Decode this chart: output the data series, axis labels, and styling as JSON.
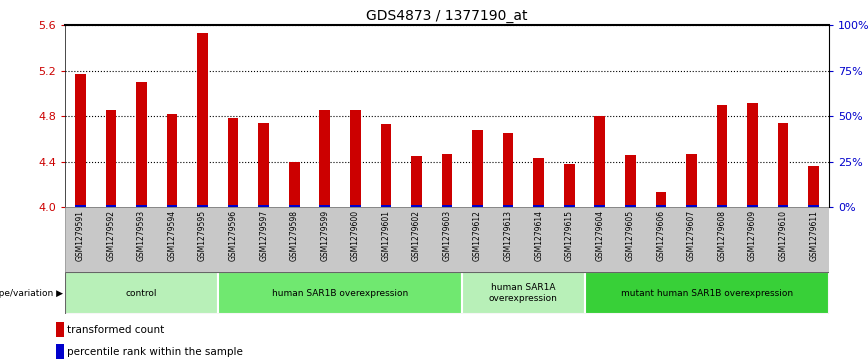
{
  "title": "GDS4873 / 1377190_at",
  "samples": [
    "GSM1279591",
    "GSM1279592",
    "GSM1279593",
    "GSM1279594",
    "GSM1279595",
    "GSM1279596",
    "GSM1279597",
    "GSM1279598",
    "GSM1279599",
    "GSM1279600",
    "GSM1279601",
    "GSM1279602",
    "GSM1279603",
    "GSM1279612",
    "GSM1279613",
    "GSM1279614",
    "GSM1279615",
    "GSM1279604",
    "GSM1279605",
    "GSM1279606",
    "GSM1279607",
    "GSM1279608",
    "GSM1279609",
    "GSM1279610",
    "GSM1279611"
  ],
  "values": [
    5.17,
    4.85,
    5.1,
    4.82,
    5.53,
    4.78,
    4.74,
    4.4,
    4.85,
    4.85,
    4.73,
    4.45,
    4.47,
    4.68,
    4.65,
    4.43,
    4.38,
    4.8,
    4.46,
    4.13,
    4.47,
    4.9,
    4.92,
    4.74,
    4.36
  ],
  "bar_color": "#cc0000",
  "percentile_color": "#0000cc",
  "ylim_min": 4.0,
  "ylim_max": 5.6,
  "yticks": [
    4.0,
    4.4,
    4.8,
    5.2,
    5.6
  ],
  "right_yticks": [
    0,
    25,
    50,
    75,
    100
  ],
  "right_ytick_labels": [
    "0%",
    "25%",
    "50%",
    "75%",
    "100%"
  ],
  "groups": [
    {
      "label": "control",
      "start": 0,
      "end": 5,
      "color": "#b8f0b8"
    },
    {
      "label": "human SAR1B overexpression",
      "start": 5,
      "end": 13,
      "color": "#70e870"
    },
    {
      "label": "human SAR1A\noverexpression",
      "start": 13,
      "end": 17,
      "color": "#b8f0b8"
    },
    {
      "label": "mutant human SAR1B overexpression",
      "start": 17,
      "end": 25,
      "color": "#38d038"
    }
  ],
  "group_label_prefix": "genotype/variation",
  "legend_red_label": "transformed count",
  "legend_blue_label": "percentile rank within the sample",
  "bar_width": 0.35,
  "percentile_bar_width": 0.35,
  "tick_area_color": "#c8c8c8",
  "right_axis_color": "#0000cc",
  "left_axis_color": "#cc0000",
  "title_fontsize": 10
}
